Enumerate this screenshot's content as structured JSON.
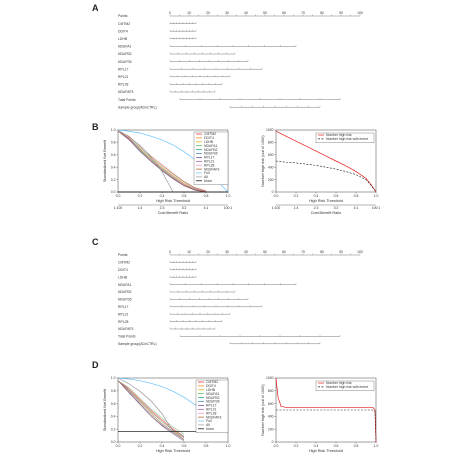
{
  "panels": {
    "A": {
      "letter": "A",
      "rows": [
        "Points",
        "CMTM2",
        "DDIT4",
        "LDHB",
        "NDUFA1",
        "NDUFB2",
        "NDUFS5",
        "RPL17",
        "RPL21",
        "RPL28",
        "NDUFAF3",
        "Total Points",
        "Sample group(ADvCTRL)"
      ],
      "points_ticks": [
        "0",
        "10",
        "20",
        "30",
        "40",
        "50",
        "60",
        "70",
        "80",
        "90",
        "100"
      ]
    },
    "C": {
      "letter": "C",
      "rows": [
        "Points",
        "CMTM2",
        "DDIT4",
        "LDHB",
        "NDUFA1",
        "NDUFB2",
        "NDUFS5",
        "RPL17",
        "RPL21",
        "RPL28",
        "NDUFAF3",
        "Total Points",
        "Sample group(ADvCTRL)"
      ],
      "points_ticks": [
        "0",
        "10",
        "20",
        "30",
        "40",
        "50",
        "60",
        "70",
        "80",
        "90",
        "100"
      ]
    },
    "B": {
      "letter": "B",
      "legend": [
        "CMTM2",
        "DDIT4",
        "LDHB",
        "NDUFA1",
        "NDUFB2",
        "NDUFS5",
        "RPL17",
        "RPL21",
        "RPL28",
        "NDUFAF3",
        "Full",
        "All",
        "None"
      ],
      "legend_colors": [
        "#e41a1c",
        "#ff7f00",
        "#c8b400",
        "#4daf4a",
        "#1b9e77",
        "#377eb8",
        "#6a3d9a",
        "#984ea3",
        "#f781bf",
        "#a65628",
        "#66c2ff",
        "#999999",
        "#000000"
      ],
      "risk_legend": [
        "Number high risk",
        "Number high risk with event"
      ]
    },
    "D": {
      "letter": "D",
      "legend": [
        "CMTM2",
        "DDIT4",
        "LDHB",
        "NDUFA1",
        "NDUFB2",
        "NDUFS5",
        "RPL17",
        "RPL21",
        "RPL28",
        "NDUFAF3",
        "Full",
        "All",
        "None"
      ],
      "legend_colors": [
        "#e41a1c",
        "#ff7f00",
        "#c8b400",
        "#4daf4a",
        "#1b9e77",
        "#377eb8",
        "#6a3d9a",
        "#984ea3",
        "#f781bf",
        "#a65628",
        "#66c2ff",
        "#999999",
        "#000000"
      ],
      "risk_legend": [
        "Number high risk",
        "Number high risk with event"
      ]
    }
  },
  "chart_data": [
    {
      "panel": "B",
      "type": "line",
      "xlabel": "High Risk Threshold",
      "ylabel": "Standardized Net Benefit",
      "x2label": "Cost:Benefit Ratio",
      "xlim": [
        0,
        1
      ],
      "ylim": [
        0,
        1
      ],
      "x_ticks": [
        "0.0",
        "0.2",
        "0.4",
        "0.6",
        "0.8",
        "1.0"
      ],
      "y_ticks": [
        "0.0",
        "0.2",
        "0.4",
        "0.6",
        "0.8",
        "1.0"
      ],
      "cost_benefit_ticks": [
        "1:100",
        "1:4",
        "2:3",
        "3:2",
        "4:1",
        "100:1"
      ],
      "series": [
        {
          "name": "CMTM2",
          "x": [
            0,
            0.1,
            0.2,
            0.3,
            0.4,
            0.5,
            0.6,
            0.7,
            0.8
          ],
          "y": [
            0.98,
            0.9,
            0.74,
            0.58,
            0.44,
            0.3,
            0.17,
            0.07,
            0.02
          ]
        },
        {
          "name": "DDIT4",
          "x": [
            0,
            0.1,
            0.2,
            0.3,
            0.4,
            0.5,
            0.6,
            0.7,
            0.8
          ],
          "y": [
            0.98,
            0.88,
            0.7,
            0.55,
            0.4,
            0.27,
            0.14,
            0.05,
            0.01
          ]
        },
        {
          "name": "LDHB",
          "x": [
            0,
            0.1,
            0.2,
            0.3,
            0.4,
            0.5,
            0.6,
            0.7,
            0.8
          ],
          "y": [
            0.98,
            0.86,
            0.68,
            0.52,
            0.37,
            0.24,
            0.12,
            0.04,
            0.0
          ]
        },
        {
          "name": "NDUFA1",
          "x": [
            0,
            0.1,
            0.2,
            0.3,
            0.4,
            0.5,
            0.6,
            0.7,
            0.8
          ],
          "y": [
            0.98,
            0.89,
            0.72,
            0.56,
            0.42,
            0.29,
            0.16,
            0.06,
            0.01
          ]
        },
        {
          "name": "NDUFB2",
          "x": [
            0,
            0.1,
            0.2,
            0.3,
            0.4,
            0.5,
            0.6,
            0.7,
            0.8
          ],
          "y": [
            0.98,
            0.87,
            0.69,
            0.53,
            0.38,
            0.25,
            0.13,
            0.05,
            0.0
          ]
        },
        {
          "name": "NDUFS5",
          "x": [
            0,
            0.1,
            0.2,
            0.3,
            0.4,
            0.5,
            0.6,
            0.7,
            0.8
          ],
          "y": [
            0.98,
            0.85,
            0.66,
            0.5,
            0.35,
            0.22,
            0.11,
            0.03,
            0.0
          ]
        },
        {
          "name": "RPL17",
          "x": [
            0,
            0.1,
            0.2,
            0.3,
            0.4,
            0.5,
            0.6,
            0.7,
            0.8
          ],
          "y": [
            0.98,
            0.84,
            0.65,
            0.49,
            0.34,
            0.21,
            0.1,
            0.03,
            0.0
          ]
        },
        {
          "name": "RPL21",
          "x": [
            0,
            0.1,
            0.2,
            0.3,
            0.4,
            0.5,
            0.6,
            0.7,
            0.8
          ],
          "y": [
            0.98,
            0.86,
            0.67,
            0.51,
            0.36,
            0.23,
            0.11,
            0.04,
            0.0
          ]
        },
        {
          "name": "RPL28",
          "x": [
            0,
            0.1,
            0.2,
            0.3,
            0.4,
            0.5,
            0.6,
            0.7,
            0.8
          ],
          "y": [
            0.98,
            0.87,
            0.71,
            0.54,
            0.39,
            0.26,
            0.13,
            0.05,
            0.01
          ]
        },
        {
          "name": "NDUFAF3",
          "x": [
            0,
            0.1,
            0.2,
            0.3,
            0.4,
            0.5,
            0.6,
            0.7,
            0.8
          ],
          "y": [
            0.98,
            0.85,
            0.67,
            0.5,
            0.35,
            0.22,
            0.1,
            0.03,
            0.0
          ]
        },
        {
          "name": "Full",
          "x": [
            0,
            0.1,
            0.2,
            0.3,
            0.4,
            0.5,
            0.6,
            0.7,
            0.8,
            0.9,
            1.0
          ],
          "y": [
            1.0,
            0.98,
            0.95,
            0.9,
            0.84,
            0.76,
            0.65,
            0.52,
            0.36,
            0.18,
            0.0
          ]
        },
        {
          "name": "All",
          "x": [
            0,
            0.1,
            0.2,
            0.3,
            0.4,
            0.5
          ],
          "y": [
            1.0,
            0.89,
            0.75,
            0.57,
            0.33,
            0.0
          ]
        },
        {
          "name": "None",
          "x": [
            0,
            1
          ],
          "y": [
            0,
            0
          ]
        }
      ]
    },
    {
      "panel": "B-right",
      "type": "line",
      "xlabel": "High Risk Threshold",
      "ylabel": "Number high risk (out of 1000)",
      "x2label": "Cost:Benefit Ratio",
      "xlim": [
        0,
        1
      ],
      "ylim": [
        0,
        1000
      ],
      "x_ticks": [
        "0.0",
        "0.2",
        "0.4",
        "0.6",
        "0.8",
        "1.0"
      ],
      "y_ticks": [
        "0",
        "200",
        "400",
        "600",
        "800",
        "1000"
      ],
      "cost_benefit_ticks": [
        "1:100",
        "1:4",
        "2:3",
        "3:2",
        "4:1",
        "100:1"
      ],
      "series": [
        {
          "name": "Number high risk",
          "x": [
            0,
            0.1,
            0.2,
            0.3,
            0.4,
            0.5,
            0.6,
            0.7,
            0.8,
            0.9,
            0.95,
            1.0
          ],
          "y": [
            980,
            900,
            820,
            740,
            660,
            580,
            500,
            420,
            330,
            220,
            120,
            0
          ]
        },
        {
          "name": "Number high risk with event",
          "x": [
            0,
            0.1,
            0.2,
            0.3,
            0.4,
            0.5,
            0.6,
            0.7,
            0.8,
            0.9,
            0.95,
            1.0
          ],
          "y": [
            500,
            480,
            470,
            450,
            430,
            400,
            370,
            330,
            280,
            200,
            110,
            0
          ]
        }
      ]
    },
    {
      "panel": "D",
      "type": "line",
      "xlabel": "High Risk Threshold",
      "ylabel": "Standardized Net Benefit",
      "xlim": [
        0,
        1
      ],
      "ylim": [
        -0.2,
        1
      ],
      "x_ticks": [
        "0.0",
        "0.2",
        "0.4",
        "0.6",
        "0.8",
        "1.0"
      ],
      "y_ticks": [
        "0.0",
        "0.2",
        "0.4",
        "0.6",
        "0.8",
        "1.0"
      ],
      "series": [
        {
          "name": "CMTM2",
          "x": [
            0,
            0.1,
            0.2,
            0.3,
            0.4,
            0.5,
            0.6
          ],
          "y": [
            0.95,
            0.8,
            0.6,
            0.4,
            0.22,
            0.05,
            -0.1
          ]
        },
        {
          "name": "DDIT4",
          "x": [
            0,
            0.1,
            0.2,
            0.3,
            0.4,
            0.5,
            0.6
          ],
          "y": [
            0.95,
            0.78,
            0.58,
            0.36,
            0.2,
            0.02,
            -0.12
          ]
        },
        {
          "name": "LDHB",
          "x": [
            0,
            0.1,
            0.2,
            0.3,
            0.4,
            0.5,
            0.6
          ],
          "y": [
            0.95,
            0.75,
            0.55,
            0.34,
            0.15,
            0.0,
            -0.15
          ]
        },
        {
          "name": "NDUFA1",
          "x": [
            0,
            0.1,
            0.2,
            0.3,
            0.4,
            0.5,
            0.6
          ],
          "y": [
            0.95,
            0.82,
            0.62,
            0.42,
            0.25,
            0.08,
            -0.05
          ]
        },
        {
          "name": "NDUFB2",
          "x": [
            0,
            0.1,
            0.2,
            0.3,
            0.4,
            0.5,
            0.6
          ],
          "y": [
            0.95,
            0.77,
            0.57,
            0.37,
            0.18,
            0.03,
            -0.1
          ]
        },
        {
          "name": "NDUFS5",
          "x": [
            0,
            0.1,
            0.2,
            0.3,
            0.4,
            0.5,
            0.6
          ],
          "y": [
            0.95,
            0.74,
            0.52,
            0.3,
            0.12,
            -0.02,
            -0.15
          ]
        },
        {
          "name": "RPL17",
          "x": [
            0,
            0.1,
            0.2,
            0.3,
            0.4,
            0.5,
            0.6
          ],
          "y": [
            0.95,
            0.72,
            0.5,
            0.28,
            0.1,
            -0.05,
            -0.18
          ]
        },
        {
          "name": "RPL21",
          "x": [
            0,
            0.1,
            0.2,
            0.3,
            0.4,
            0.5,
            0.6
          ],
          "y": [
            0.95,
            0.76,
            0.54,
            0.33,
            0.14,
            0.0,
            -0.12
          ]
        },
        {
          "name": "RPL28",
          "x": [
            0,
            0.1,
            0.2,
            0.3,
            0.4,
            0.5,
            0.6
          ],
          "y": [
            0.95,
            0.79,
            0.59,
            0.38,
            0.2,
            0.04,
            -0.08
          ]
        },
        {
          "name": "NDUFAF3",
          "x": [
            0,
            0.1,
            0.2,
            0.3,
            0.4,
            0.5,
            0.6
          ],
          "y": [
            0.95,
            0.73,
            0.51,
            0.3,
            0.11,
            -0.03,
            -0.16
          ]
        },
        {
          "name": "Full",
          "x": [
            0,
            0.1,
            0.2,
            0.3,
            0.4,
            0.5,
            0.6,
            0.7,
            0.8,
            0.9,
            1.0
          ],
          "y": [
            1.0,
            0.98,
            0.95,
            0.9,
            0.84,
            0.75,
            0.64,
            0.5,
            0.34,
            0.17,
            0.0
          ]
        },
        {
          "name": "All",
          "x": [
            0,
            0.1,
            0.2,
            0.3,
            0.4,
            0.5
          ],
          "y": [
            1.0,
            0.89,
            0.75,
            0.57,
            0.33,
            0.0
          ]
        },
        {
          "name": "None",
          "x": [
            0,
            1
          ],
          "y": [
            0,
            0
          ]
        }
      ]
    },
    {
      "panel": "D-right",
      "type": "line",
      "xlabel": "High Risk Threshold",
      "ylabel": "Number high risk (out of 1000)",
      "xlim": [
        0,
        1
      ],
      "ylim": [
        0,
        1000
      ],
      "x_ticks": [
        "0.0",
        "0.2",
        "0.4",
        "0.6",
        "0.8",
        "1.0"
      ],
      "y_ticks": [
        "0",
        "200",
        "400",
        "600",
        "800",
        "1000"
      ],
      "series": [
        {
          "name": "Number high risk",
          "x": [
            0,
            0.02,
            0.05,
            0.1,
            0.9,
            0.97,
            0.99,
            1.0
          ],
          "y": [
            1000,
            700,
            560,
            540,
            540,
            540,
            500,
            0
          ]
        },
        {
          "name": "Number high risk with event",
          "x": [
            0,
            0.02,
            0.05,
            0.1,
            0.9,
            0.97,
            0.99,
            1.0
          ],
          "y": [
            500,
            500,
            500,
            500,
            500,
            500,
            480,
            0
          ]
        }
      ]
    }
  ]
}
